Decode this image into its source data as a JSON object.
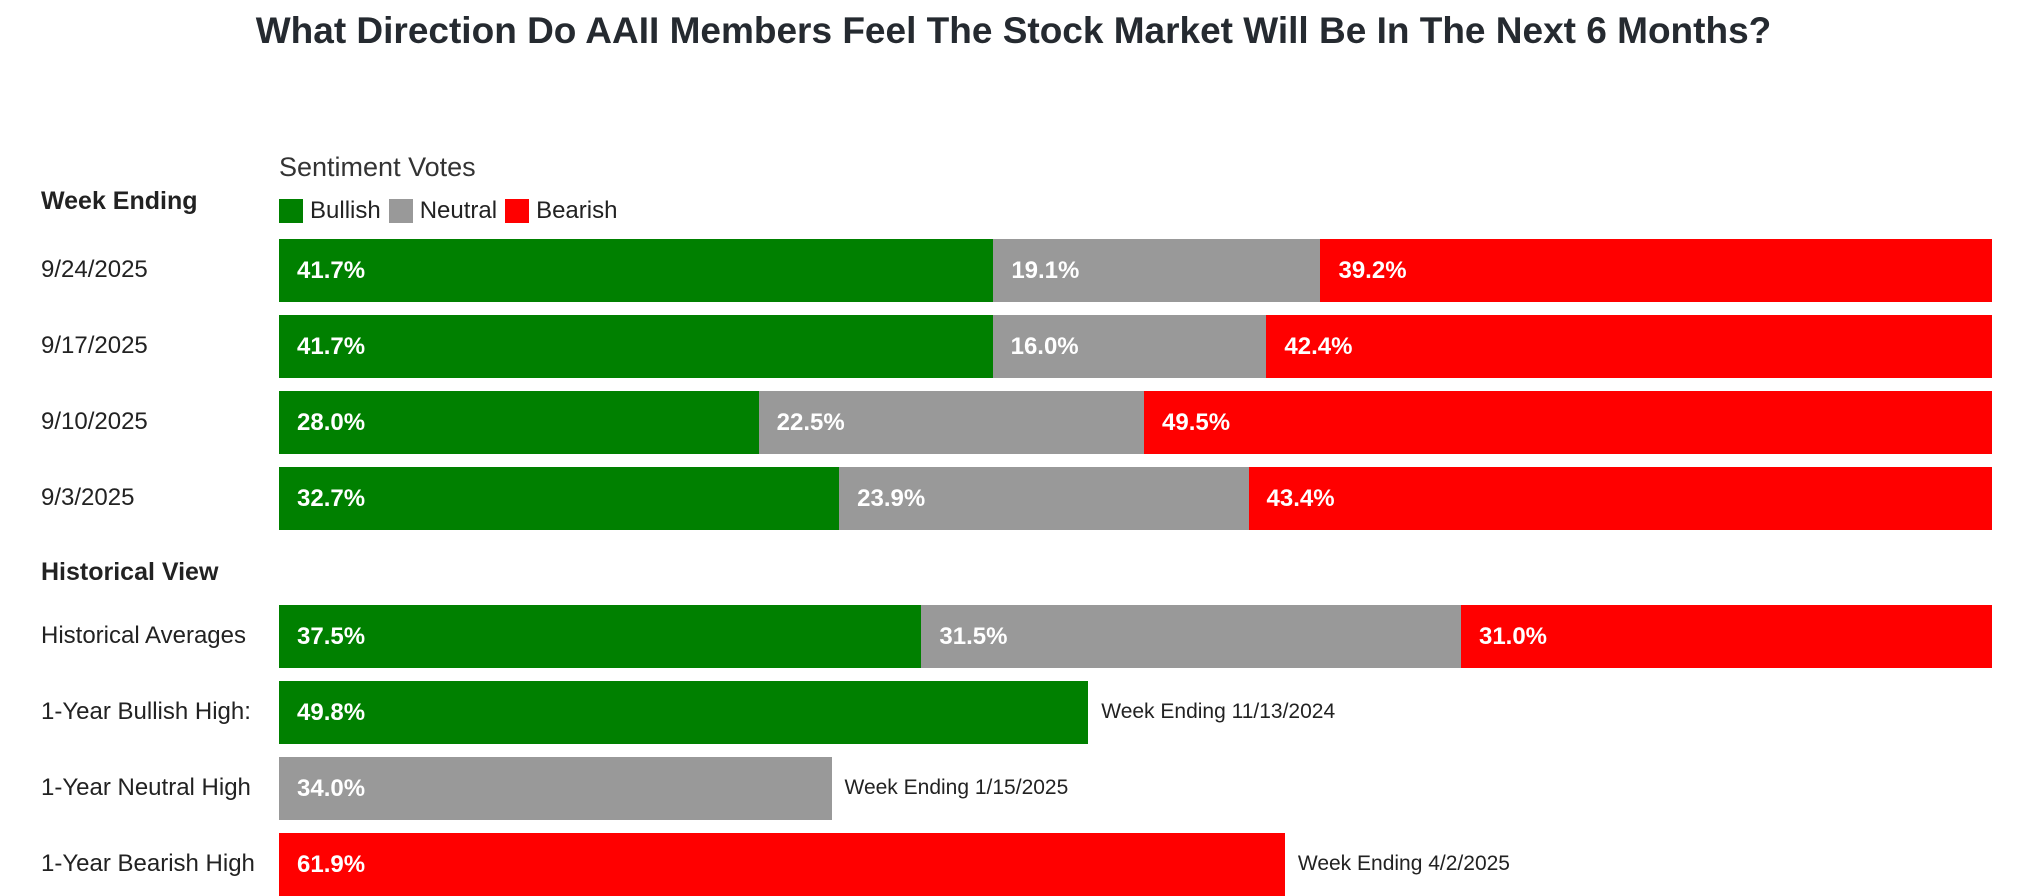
{
  "title": "What Direction Do AAII Members Feel The Stock Market Will Be In The Next 6 Months?",
  "week_header": "Week Ending",
  "votes_label": "Sentiment Votes",
  "historical_header": "Historical View",
  "colors": {
    "bullish": "#008000",
    "neutral": "#999999",
    "bearish": "#ff0000"
  },
  "chart_data": {
    "type": "bar",
    "orientation": "horizontal-stacked",
    "legend": [
      "Bullish",
      "Neutral",
      "Bearish"
    ],
    "weekly": [
      {
        "label": "9/24/2025",
        "values": [
          41.7,
          19.1,
          39.2
        ],
        "labels": [
          "41.7%",
          "19.1%",
          "39.2%"
        ]
      },
      {
        "label": "9/17/2025",
        "values": [
          41.7,
          16.0,
          42.4
        ],
        "labels": [
          "41.7%",
          "16.0%",
          "42.4%"
        ]
      },
      {
        "label": "9/10/2025",
        "values": [
          28.0,
          22.5,
          49.5
        ],
        "labels": [
          "28.0%",
          "22.5%",
          "49.5%"
        ]
      },
      {
        "label": "9/3/2025",
        "values": [
          32.7,
          23.9,
          43.4
        ],
        "labels": [
          "32.7%",
          "23.9%",
          "43.4%"
        ]
      }
    ],
    "historical": [
      {
        "label": "Historical Averages",
        "values": [
          37.5,
          31.5,
          31.0
        ],
        "labels": [
          "37.5%",
          "31.5%",
          "31.0%"
        ]
      },
      {
        "label": "1-Year Bullish High:",
        "series": "Bullish",
        "value": 49.8,
        "value_label": "49.8%",
        "note": "Week Ending 11/13/2024"
      },
      {
        "label": "1-Year Neutral High",
        "series": "Neutral",
        "value": 34.0,
        "value_label": "34.0%",
        "note": "Week Ending 1/15/2025"
      },
      {
        "label": "1-Year Bearish High",
        "series": "Bearish",
        "value": 61.9,
        "value_label": "61.9%",
        "note": "Week Ending 4/2/2025"
      }
    ]
  }
}
